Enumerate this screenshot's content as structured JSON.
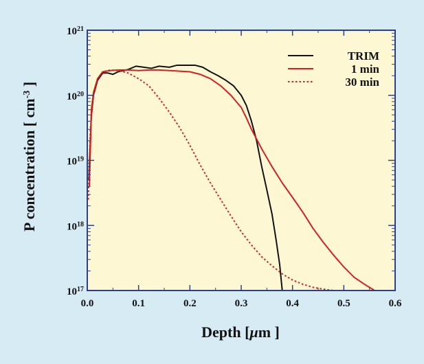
{
  "chart_data": {
    "type": "line",
    "xlabel_main": "Depth [",
    "xlabel_mu": "μ",
    "xlabel_unit": "m ]",
    "ylabel_main": "P concentration [ cm",
    "ylabel_exp": "-3",
    "ylabel_close": " ]",
    "xlim": [
      0.0,
      0.6
    ],
    "ylim": [
      1e+17,
      1e+21
    ],
    "y_scale": "log",
    "grid": false,
    "legend_position": "top-right",
    "background_color": "#fdf7d4",
    "x_ticks": [
      {
        "value": 0.0,
        "label": "0.0"
      },
      {
        "value": 0.1,
        "label": "0.1"
      },
      {
        "value": 0.2,
        "label": "0.2"
      },
      {
        "value": 0.3,
        "label": "0.3"
      },
      {
        "value": 0.4,
        "label": "0.4"
      },
      {
        "value": 0.5,
        "label": "0.5"
      },
      {
        "value": 0.6,
        "label": "0.6"
      }
    ],
    "y_ticks": [
      {
        "exponent": 17,
        "base": "10",
        "exp": "17"
      },
      {
        "exponent": 18,
        "base": "10",
        "exp": "18"
      },
      {
        "exponent": 19,
        "base": "10",
        "exp": "19"
      },
      {
        "exponent": 20,
        "base": "10",
        "exp": "20"
      },
      {
        "exponent": 21,
        "base": "10",
        "exp": "21"
      }
    ],
    "series": [
      {
        "name": "TRIM",
        "color": "#111111",
        "dash": "solid",
        "points": [
          [
            0.003,
            5e+18
          ],
          [
            0.008,
            5e+19
          ],
          [
            0.012,
            1e+20
          ],
          [
            0.02,
            1.7e+20
          ],
          [
            0.03,
            2.2e+20
          ],
          [
            0.04,
            2.2e+20
          ],
          [
            0.05,
            2.1e+20
          ],
          [
            0.06,
            2.3e+20
          ],
          [
            0.08,
            2.5e+20
          ],
          [
            0.095,
            2.8e+20
          ],
          [
            0.11,
            2.7e+20
          ],
          [
            0.125,
            2.6e+20
          ],
          [
            0.14,
            2.8e+20
          ],
          [
            0.16,
            2.7e+20
          ],
          [
            0.175,
            2.9e+20
          ],
          [
            0.19,
            2.9e+20
          ],
          [
            0.21,
            2.9e+20
          ],
          [
            0.225,
            2.7e+20
          ],
          [
            0.24,
            2.3e+20
          ],
          [
            0.255,
            2e+20
          ],
          [
            0.27,
            1.7e+20
          ],
          [
            0.285,
            1.4e+20
          ],
          [
            0.3,
            1e+20
          ],
          [
            0.31,
            7e+19
          ],
          [
            0.32,
            4e+19
          ],
          [
            0.33,
            2e+19
          ],
          [
            0.34,
            8e+18
          ],
          [
            0.35,
            3.5e+18
          ],
          [
            0.36,
            1.5e+18
          ],
          [
            0.368,
            6e+17
          ],
          [
            0.375,
            2.5e+17
          ],
          [
            0.38,
            1e+17
          ]
        ]
      },
      {
        "name": "1 min",
        "color": "#d42020",
        "dash": "solid",
        "points": [
          [
            0.004,
            4e+18
          ],
          [
            0.008,
            6e+19
          ],
          [
            0.012,
            1.1e+20
          ],
          [
            0.02,
            1.8e+20
          ],
          [
            0.03,
            2.3e+20
          ],
          [
            0.045,
            2.4e+20
          ],
          [
            0.06,
            2.45e+20
          ],
          [
            0.08,
            2.45e+20
          ],
          [
            0.1,
            2.4e+20
          ],
          [
            0.12,
            2.45e+20
          ],
          [
            0.14,
            2.45e+20
          ],
          [
            0.16,
            2.4e+20
          ],
          [
            0.18,
            2.35e+20
          ],
          [
            0.2,
            2.3e+20
          ],
          [
            0.22,
            2.1e+20
          ],
          [
            0.24,
            1.8e+20
          ],
          [
            0.26,
            1.4e+20
          ],
          [
            0.28,
            1e+20
          ],
          [
            0.3,
            6.5e+19
          ],
          [
            0.31,
            4.5e+19
          ],
          [
            0.32,
            3e+19
          ],
          [
            0.34,
            1.5e+19
          ],
          [
            0.36,
            8e+18
          ],
          [
            0.38,
            4.5e+18
          ],
          [
            0.4,
            2.7e+18
          ],
          [
            0.42,
            1.6e+18
          ],
          [
            0.44,
            9e+17
          ],
          [
            0.46,
            5.5e+17
          ],
          [
            0.48,
            3.5e+17
          ],
          [
            0.5,
            2.3e+17
          ],
          [
            0.52,
            1.6e+17
          ],
          [
            0.54,
            1.25e+17
          ],
          [
            0.56,
            1e+17
          ]
        ]
      },
      {
        "name": "30 min",
        "color": "#d42020",
        "dash": "dotted",
        "points": [
          [
            0.002,
            2.5e+18
          ],
          [
            0.006,
            3e+19
          ],
          [
            0.012,
            1e+20
          ],
          [
            0.02,
            1.8e+20
          ],
          [
            0.03,
            2.3e+20
          ],
          [
            0.045,
            2.45e+20
          ],
          [
            0.06,
            2.4e+20
          ],
          [
            0.08,
            2.2e+20
          ],
          [
            0.1,
            1.8e+20
          ],
          [
            0.12,
            1.4e+20
          ],
          [
            0.14,
            9e+19
          ],
          [
            0.16,
            5.5e+19
          ],
          [
            0.18,
            3.2e+19
          ],
          [
            0.2,
            1.7e+19
          ],
          [
            0.22,
            8.5e+18
          ],
          [
            0.24,
            4.5e+18
          ],
          [
            0.26,
            2.5e+18
          ],
          [
            0.28,
            1.4e+18
          ],
          [
            0.3,
            8e+17
          ],
          [
            0.32,
            5e+17
          ],
          [
            0.34,
            3.3e+17
          ],
          [
            0.36,
            2.4e+17
          ],
          [
            0.38,
            1.8e+17
          ],
          [
            0.4,
            1.45e+17
          ],
          [
            0.42,
            1.25e+17
          ],
          [
            0.44,
            1.12e+17
          ],
          [
            0.46,
            1.05e+17
          ],
          [
            0.48,
            1e+17
          ]
        ]
      }
    ]
  }
}
